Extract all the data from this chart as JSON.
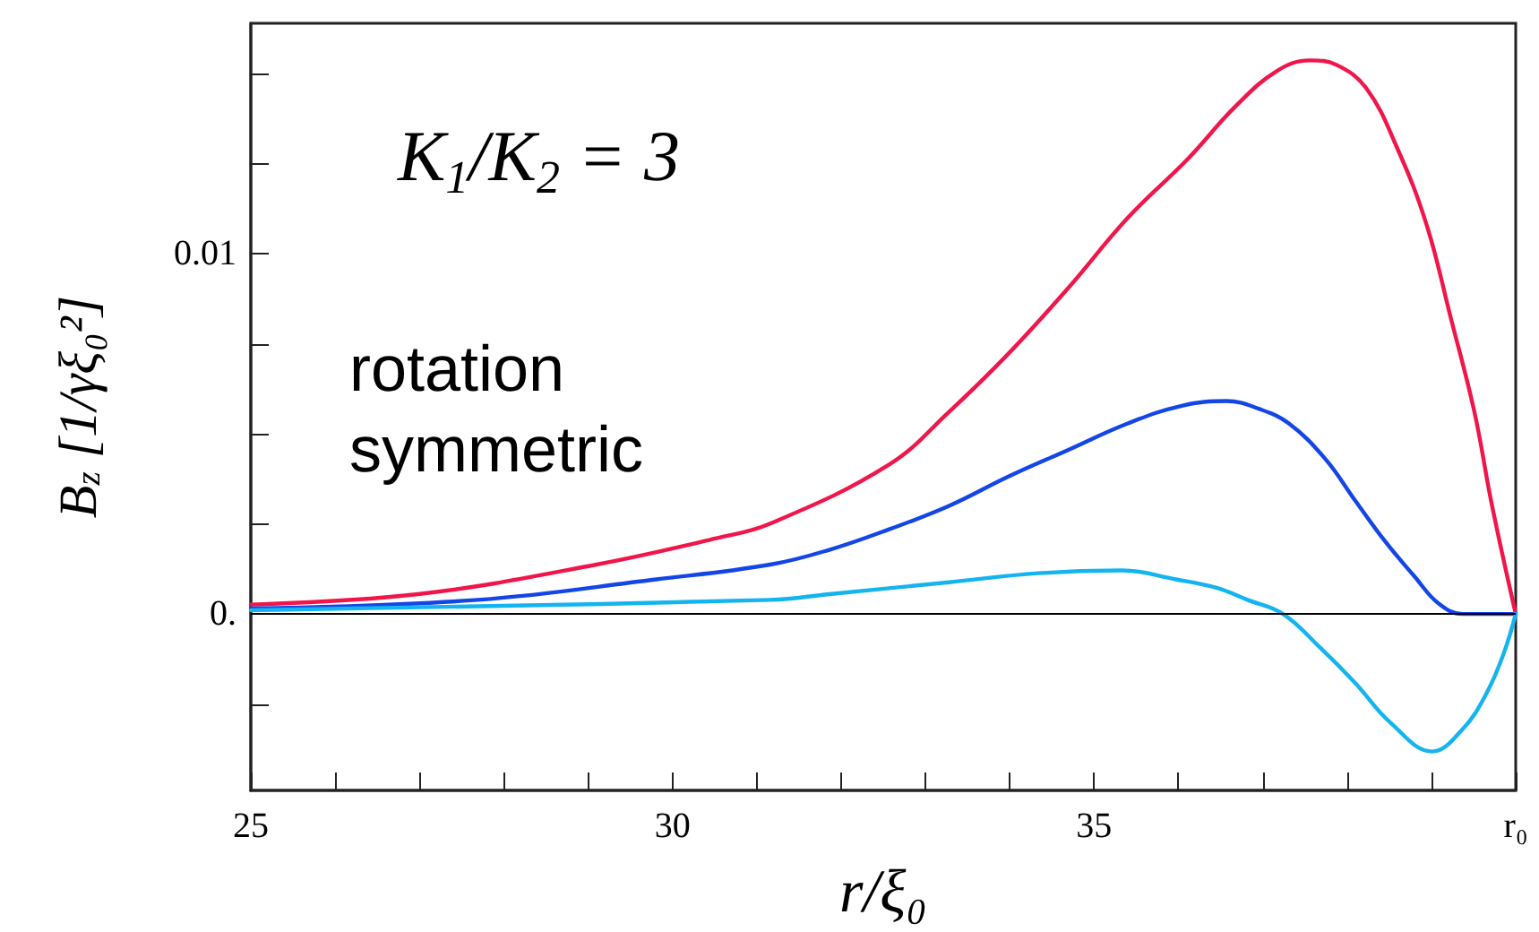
{
  "chart_data": {
    "type": "line",
    "xlabel": "r/ξ₀",
    "ylabel": "B$_{z}$ [1/γξ₀²]",
    "annotations": [
      "K$_{1}$/K$_{2}$ = 3",
      "rotation symmetric"
    ],
    "xlim": [
      25,
      40
    ],
    "xticks": [
      25,
      {
        "value": 26,
        "label": null
      },
      {
        "value": 27,
        "label": null
      },
      {
        "value": 28,
        "label": null
      },
      {
        "value": 29,
        "label": null
      },
      30,
      {
        "value": 31,
        "label": null
      },
      {
        "value": 32,
        "label": null
      },
      {
        "value": 33,
        "label": null
      },
      {
        "value": 34,
        "label": null
      },
      35,
      {
        "value": 36,
        "label": null
      },
      {
        "value": 37,
        "label": null
      },
      {
        "value": 38,
        "label": null
      },
      {
        "value": 39,
        "label": null
      },
      {
        "value": 40,
        "label": "r₀"
      }
    ],
    "ylim": [
      -0.0049,
      0.0164
    ],
    "yticks": [
      {
        "value": -0.0025,
        "label": null
      },
      {
        "value": 0,
        "label": "0."
      },
      {
        "value": 0.0025,
        "label": null
      },
      {
        "value": 0.005,
        "label": null
      },
      {
        "value": 0.0075,
        "label": null
      },
      {
        "value": 0.01,
        "label": "0.01"
      },
      {
        "value": 0.0125,
        "label": null
      },
      {
        "value": 0.015,
        "label": null
      }
    ],
    "grid": false,
    "marker": "none",
    "line_style": "solid",
    "ref_lines": [
      {
        "axis": "y",
        "value": 0,
        "label": null,
        "color": "#000000"
      }
    ],
    "series": [
      {
        "color": "#f0164a",
        "x": [
          25,
          26.98,
          29.1,
          30.52,
          31.16,
          32.57,
          33.28,
          33.99,
          34.69,
          35.4,
          36.11,
          36.68,
          37.17,
          37.56,
          37.88,
          38.23,
          38.59,
          38.94,
          39.23,
          39.51,
          39.72,
          40
        ],
        "values": [
          0.00026,
          0.00055,
          0.00137,
          0.0021,
          0.00251,
          0.00415,
          0.00561,
          0.00724,
          0.00904,
          0.011,
          0.01263,
          0.0141,
          0.01508,
          0.01537,
          0.01524,
          0.01459,
          0.01296,
          0.01083,
          0.00822,
          0.00561,
          0.003,
          0
        ]
      },
      {
        "color": "#1446e6",
        "x": [
          25,
          27.69,
          29.81,
          31.16,
          31.86,
          32.57,
          33.28,
          33.99,
          34.69,
          35.4,
          36.04,
          36.57,
          36.96,
          37.31,
          37.74,
          38.09,
          38.45,
          38.8,
          39.08,
          39.37,
          40
        ],
        "values": [
          0.00015,
          0.00039,
          0.00096,
          0.00137,
          0.00178,
          0.00235,
          0.003,
          0.00382,
          0.00455,
          0.00529,
          0.00578,
          0.00591,
          0.00569,
          0.00529,
          0.00431,
          0.00317,
          0.00202,
          0.00104,
          0.0003,
          0,
          0
        ]
      },
      {
        "color": "#14b4f0",
        "x": [
          25,
          31.16,
          31.86,
          33.28,
          34.34,
          35.33,
          35.97,
          36.46,
          36.82,
          37.24,
          37.67,
          38.09,
          38.52,
          39.01,
          39.37,
          39.65,
          39.86,
          40
        ],
        "values": [
          0.0001,
          0.00039,
          0.00055,
          0.00088,
          0.00113,
          0.00121,
          0.00096,
          0.00072,
          0.00039,
          0,
          -0.00091,
          -0.0019,
          -0.00303,
          -0.00382,
          -0.0032,
          -0.00222,
          -0.00108,
          0
        ]
      }
    ]
  }
}
